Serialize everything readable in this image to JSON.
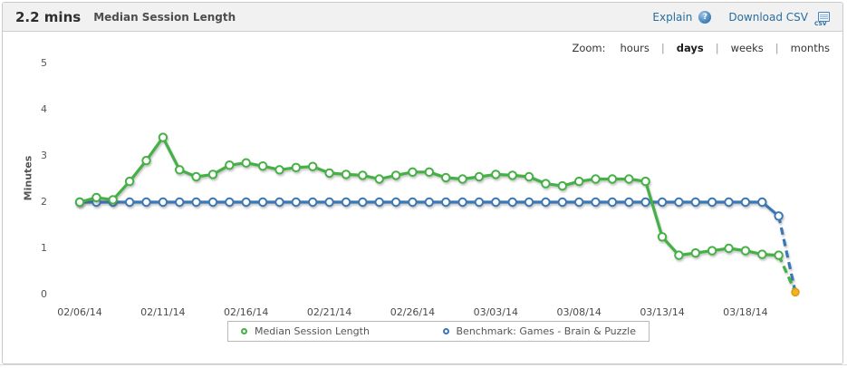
{
  "header": {
    "value": "2.2 mins",
    "title": "Median Session Length",
    "explain_label": "Explain",
    "explain_icon_glyph": "?",
    "download_label": "Download CSV",
    "csv_icon_text": "CSV"
  },
  "zoom_bar": {
    "label": "Zoom:",
    "separator": "|",
    "options": [
      {
        "label": "hours",
        "active": false
      },
      {
        "label": "days",
        "active": true
      },
      {
        "label": "weeks",
        "active": false
      },
      {
        "label": "months",
        "active": false
      }
    ]
  },
  "chart_data": {
    "type": "line",
    "title": "Median Session Length",
    "ylabel": "Minutes",
    "ylim": [
      0,
      5
    ],
    "y_ticks": [
      0,
      1,
      2,
      3,
      4,
      5
    ],
    "grid": false,
    "legend_position": "bottom",
    "categories": [
      "02/06/14",
      "02/07/14",
      "02/08/14",
      "02/09/14",
      "02/10/14",
      "02/11/14",
      "02/12/14",
      "02/13/14",
      "02/14/14",
      "02/15/14",
      "02/16/14",
      "02/17/14",
      "02/18/14",
      "02/19/14",
      "02/20/14",
      "02/21/14",
      "02/22/14",
      "02/23/14",
      "02/24/14",
      "02/25/14",
      "02/26/14",
      "02/27/14",
      "02/28/14",
      "03/01/14",
      "03/02/14",
      "03/03/14",
      "03/04/14",
      "03/05/14",
      "03/06/14",
      "03/07/14",
      "03/08/14",
      "03/09/14",
      "03/10/14",
      "03/11/14",
      "03/12/14",
      "03/13/14",
      "03/14/14",
      "03/15/14",
      "03/16/14",
      "03/17/14",
      "03/18/14",
      "03/19/14",
      "03/20/14",
      "03/21/14"
    ],
    "x_tick_indices": [
      0,
      5,
      10,
      15,
      20,
      25,
      30,
      35,
      40
    ],
    "x_tick_labels": [
      "02/06/14",
      "02/11/14",
      "02/16/14",
      "02/21/14",
      "02/26/14",
      "03/03/14",
      "03/08/14",
      "03/13/14",
      "03/18/14"
    ],
    "series": [
      {
        "name": "Median Session Length",
        "color": "#45b045",
        "dashed_from_index": 42,
        "values": [
          2.0,
          2.1,
          2.05,
          2.45,
          2.9,
          3.4,
          2.7,
          2.55,
          2.6,
          2.8,
          2.85,
          2.78,
          2.7,
          2.75,
          2.77,
          2.63,
          2.6,
          2.58,
          2.5,
          2.58,
          2.65,
          2.65,
          2.53,
          2.5,
          2.55,
          2.6,
          2.58,
          2.55,
          2.4,
          2.35,
          2.45,
          2.5,
          2.5,
          2.5,
          2.45,
          1.25,
          0.85,
          0.9,
          0.95,
          1.0,
          0.95,
          0.87,
          0.85,
          0.05
        ]
      },
      {
        "name": "Benchmark: Games - Brain & Puzzle",
        "color": "#3b77b5",
        "dashed_from_index": 42,
        "values": [
          2.0,
          2.0,
          2.0,
          2.0,
          2.0,
          2.0,
          2.0,
          2.0,
          2.0,
          2.0,
          2.0,
          2.0,
          2.0,
          2.0,
          2.0,
          2.0,
          2.0,
          2.0,
          2.0,
          2.0,
          2.0,
          2.0,
          2.0,
          2.0,
          2.0,
          2.0,
          2.0,
          2.0,
          2.0,
          2.0,
          2.0,
          2.0,
          2.0,
          2.0,
          2.0,
          2.0,
          2.0,
          2.0,
          2.0,
          2.0,
          2.0,
          2.0,
          1.7,
          0.05
        ]
      }
    ],
    "end_marker": {
      "color": "#f4b31d",
      "stroke": "#dc9a10"
    }
  },
  "colors": {
    "link_blue": "#2a6e9e",
    "panel_border": "#c9c9c9",
    "header_bg": "#f1f1f1",
    "legend_border": "#b9b9b9"
  }
}
